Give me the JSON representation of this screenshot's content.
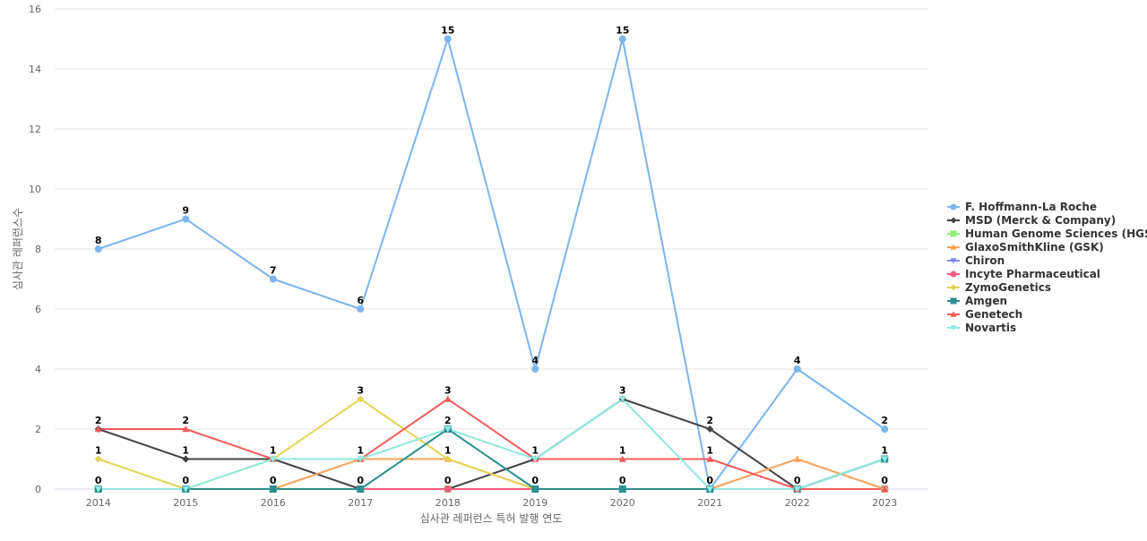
{
  "chart_data": {
    "type": "line",
    "xlabel": "심사관 레퍼런스 특허 발행 연도",
    "ylabel": "심사관 레퍼런스수",
    "ylim": [
      0,
      16
    ],
    "yticks": [
      0,
      2,
      4,
      6,
      8,
      10,
      12,
      14,
      16
    ],
    "grid": true,
    "legend_position": "right",
    "categories": [
      "2014",
      "2015",
      "2016",
      "2017",
      "2018",
      "2019",
      "2020",
      "2021",
      "2022",
      "2023"
    ],
    "label_series": [
      "F. Hoffmann-La Roche",
      "MSD (Merck & Company)",
      "Genetech",
      "ZymoGenetics",
      "Amgen"
    ],
    "series": [
      {
        "name": "F. Hoffmann-La Roche",
        "color": "#7cb5ec",
        "marker": "circle",
        "values": [
          8,
          9,
          7,
          6,
          15,
          4,
          15,
          0,
          4,
          2
        ]
      },
      {
        "name": "MSD (Merck & Company)",
        "color": "#434348",
        "marker": "diamond",
        "values": [
          2,
          1,
          1,
          0,
          0,
          1,
          3,
          2,
          0,
          1
        ]
      },
      {
        "name": "Human Genome Sciences (HGS)",
        "color": "#90ed7d",
        "marker": "square",
        "values": [
          0,
          0,
          0,
          0,
          0,
          0,
          0,
          0,
          0,
          0
        ]
      },
      {
        "name": "GlaxoSmithKline (GSK)",
        "color": "#f7a35c",
        "marker": "triangle",
        "values": [
          0,
          0,
          0,
          1,
          1,
          0,
          0,
          0,
          1,
          0
        ]
      },
      {
        "name": "Chiron",
        "color": "#8085e9",
        "marker": "triangle-down",
        "values": [
          0,
          0,
          0,
          0,
          0,
          0,
          0,
          0,
          0,
          0
        ]
      },
      {
        "name": "Incyte Pharmaceutical",
        "color": "#f15c80",
        "marker": "circle",
        "values": [
          0,
          0,
          0,
          0,
          0,
          0,
          0,
          0,
          0,
          0
        ]
      },
      {
        "name": "ZymoGenetics",
        "color": "#e4d354",
        "marker": "diamond",
        "values": [
          1,
          0,
          1,
          3,
          1,
          0,
          0,
          0,
          0,
          0
        ]
      },
      {
        "name": "Amgen",
        "color": "#2b908f",
        "marker": "square",
        "values": [
          0,
          0,
          0,
          0,
          2,
          0,
          0,
          0,
          0,
          1
        ]
      },
      {
        "name": "Genetech",
        "color": "#f45b5b",
        "marker": "triangle",
        "values": [
          2,
          2,
          1,
          1,
          3,
          1,
          1,
          1,
          0,
          0
        ]
      },
      {
        "name": "Novartis",
        "color": "#91e8e1",
        "marker": "triangle-down",
        "values": [
          0,
          0,
          1,
          1,
          2,
          1,
          3,
          0,
          0,
          1
        ]
      }
    ]
  }
}
